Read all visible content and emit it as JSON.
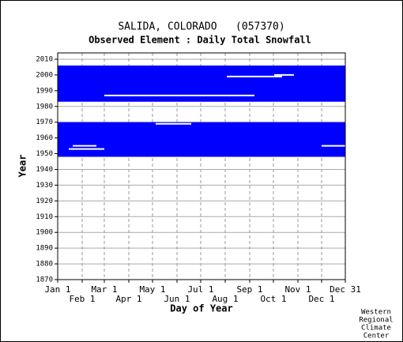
{
  "chart_data": {
    "type": "availability",
    "title": "SALIDA, COLORADO   (057370)",
    "subtitle": "Observed Element : Daily Total Snowfall",
    "xlabel": "Day of Year",
    "ylabel": "Year",
    "credit": [
      "Western",
      "Regional",
      "Climate",
      "Center"
    ],
    "color": "#0000ff",
    "xlim": [
      1,
      365
    ],
    "ylim": [
      1870,
      2014
    ],
    "xticks": [
      {
        "value": 1,
        "label": "Jan 1"
      },
      {
        "value": 32,
        "label": "Feb 1"
      },
      {
        "value": 60,
        "label": "Mar 1"
      },
      {
        "value": 91,
        "label": "Apr 1"
      },
      {
        "value": 121,
        "label": "May 1"
      },
      {
        "value": 152,
        "label": "Jun 1"
      },
      {
        "value": 182,
        "label": "Jul 1"
      },
      {
        "value": 213,
        "label": "Aug 1"
      },
      {
        "value": 244,
        "label": "Sep 1"
      },
      {
        "value": 274,
        "label": "Oct 1"
      },
      {
        "value": 305,
        "label": "Nov 1"
      },
      {
        "value": 335,
        "label": "Dec 1"
      },
      {
        "value": 365,
        "label": "Dec 31"
      }
    ],
    "yticks": [
      1870,
      1880,
      1890,
      1900,
      1910,
      1920,
      1930,
      1940,
      1950,
      1960,
      1970,
      1980,
      1990,
      2000,
      2010
    ],
    "bands": [
      {
        "x": [
          1,
          365
        ],
        "y": [
          1983,
          2006
        ]
      },
      {
        "x": [
          1,
          365
        ],
        "y": [
          1948,
          1970
        ]
      }
    ],
    "gaps": [
      {
        "x": [
          60,
          250
        ],
        "y": 1987
      },
      {
        "x": [
          215,
          285
        ],
        "y": 1999
      },
      {
        "x": [
          275,
          300
        ],
        "y": 2000
      },
      {
        "x": [
          20,
          50
        ],
        "y": 1955
      },
      {
        "x": [
          15,
          60
        ],
        "y": 1953
      },
      {
        "x": [
          335,
          365
        ],
        "y": 1955
      },
      {
        "x": [
          125,
          170
        ],
        "y": 1969
      }
    ]
  }
}
